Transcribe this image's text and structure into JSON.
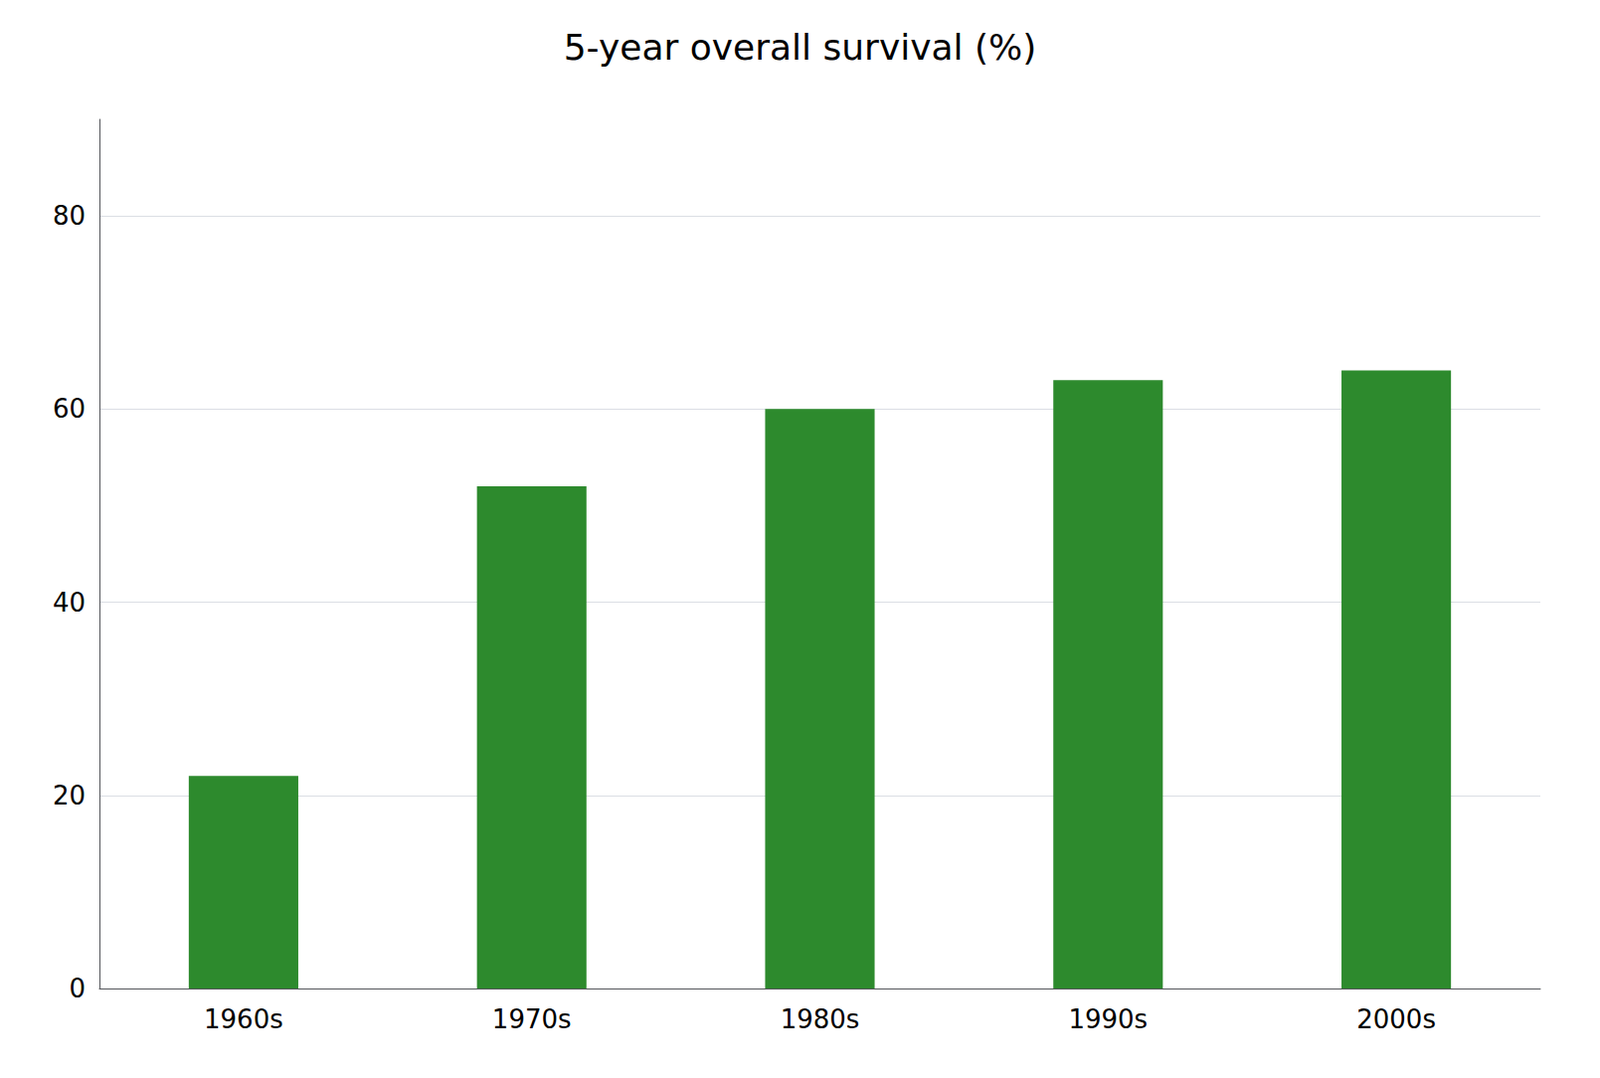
{
  "chart_data": {
    "type": "bar",
    "title": "5-year overall survival (%)",
    "categories": [
      "1960s",
      "1970s",
      "1980s",
      "1990s",
      "2000s"
    ],
    "values": [
      22,
      52,
      60,
      63,
      64
    ],
    "color": "#2d8a2d",
    "ylim": [
      0,
      90
    ],
    "yticks": [
      0,
      20,
      40,
      60,
      80
    ],
    "grid": true
  }
}
